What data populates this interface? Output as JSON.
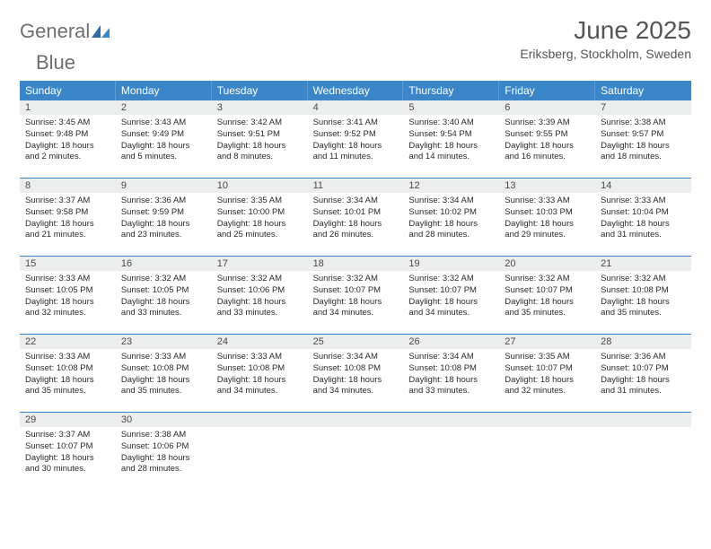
{
  "brand": {
    "part1": "General",
    "part2": "Blue"
  },
  "title": "June 2025",
  "location": "Eriksberg, Stockholm, Sweden",
  "colors": {
    "header_bg": "#3a86c8",
    "header_text": "#ffffff",
    "daynum_bg": "#eceded",
    "row_border": "#3a86c8",
    "text": "#2a2a2a",
    "title_text": "#555555"
  },
  "weekdays": [
    "Sunday",
    "Monday",
    "Tuesday",
    "Wednesday",
    "Thursday",
    "Friday",
    "Saturday"
  ],
  "weeks": [
    [
      {
        "n": "1",
        "sunrise": "Sunrise: 3:45 AM",
        "sunset": "Sunset: 9:48 PM",
        "daylight": "Daylight: 18 hours and 2 minutes."
      },
      {
        "n": "2",
        "sunrise": "Sunrise: 3:43 AM",
        "sunset": "Sunset: 9:49 PM",
        "daylight": "Daylight: 18 hours and 5 minutes."
      },
      {
        "n": "3",
        "sunrise": "Sunrise: 3:42 AM",
        "sunset": "Sunset: 9:51 PM",
        "daylight": "Daylight: 18 hours and 8 minutes."
      },
      {
        "n": "4",
        "sunrise": "Sunrise: 3:41 AM",
        "sunset": "Sunset: 9:52 PM",
        "daylight": "Daylight: 18 hours and 11 minutes."
      },
      {
        "n": "5",
        "sunrise": "Sunrise: 3:40 AM",
        "sunset": "Sunset: 9:54 PM",
        "daylight": "Daylight: 18 hours and 14 minutes."
      },
      {
        "n": "6",
        "sunrise": "Sunrise: 3:39 AM",
        "sunset": "Sunset: 9:55 PM",
        "daylight": "Daylight: 18 hours and 16 minutes."
      },
      {
        "n": "7",
        "sunrise": "Sunrise: 3:38 AM",
        "sunset": "Sunset: 9:57 PM",
        "daylight": "Daylight: 18 hours and 18 minutes."
      }
    ],
    [
      {
        "n": "8",
        "sunrise": "Sunrise: 3:37 AM",
        "sunset": "Sunset: 9:58 PM",
        "daylight": "Daylight: 18 hours and 21 minutes."
      },
      {
        "n": "9",
        "sunrise": "Sunrise: 3:36 AM",
        "sunset": "Sunset: 9:59 PM",
        "daylight": "Daylight: 18 hours and 23 minutes."
      },
      {
        "n": "10",
        "sunrise": "Sunrise: 3:35 AM",
        "sunset": "Sunset: 10:00 PM",
        "daylight": "Daylight: 18 hours and 25 minutes."
      },
      {
        "n": "11",
        "sunrise": "Sunrise: 3:34 AM",
        "sunset": "Sunset: 10:01 PM",
        "daylight": "Daylight: 18 hours and 26 minutes."
      },
      {
        "n": "12",
        "sunrise": "Sunrise: 3:34 AM",
        "sunset": "Sunset: 10:02 PM",
        "daylight": "Daylight: 18 hours and 28 minutes."
      },
      {
        "n": "13",
        "sunrise": "Sunrise: 3:33 AM",
        "sunset": "Sunset: 10:03 PM",
        "daylight": "Daylight: 18 hours and 29 minutes."
      },
      {
        "n": "14",
        "sunrise": "Sunrise: 3:33 AM",
        "sunset": "Sunset: 10:04 PM",
        "daylight": "Daylight: 18 hours and 31 minutes."
      }
    ],
    [
      {
        "n": "15",
        "sunrise": "Sunrise: 3:33 AM",
        "sunset": "Sunset: 10:05 PM",
        "daylight": "Daylight: 18 hours and 32 minutes."
      },
      {
        "n": "16",
        "sunrise": "Sunrise: 3:32 AM",
        "sunset": "Sunset: 10:05 PM",
        "daylight": "Daylight: 18 hours and 33 minutes."
      },
      {
        "n": "17",
        "sunrise": "Sunrise: 3:32 AM",
        "sunset": "Sunset: 10:06 PM",
        "daylight": "Daylight: 18 hours and 33 minutes."
      },
      {
        "n": "18",
        "sunrise": "Sunrise: 3:32 AM",
        "sunset": "Sunset: 10:07 PM",
        "daylight": "Daylight: 18 hours and 34 minutes."
      },
      {
        "n": "19",
        "sunrise": "Sunrise: 3:32 AM",
        "sunset": "Sunset: 10:07 PM",
        "daylight": "Daylight: 18 hours and 34 minutes."
      },
      {
        "n": "20",
        "sunrise": "Sunrise: 3:32 AM",
        "sunset": "Sunset: 10:07 PM",
        "daylight": "Daylight: 18 hours and 35 minutes."
      },
      {
        "n": "21",
        "sunrise": "Sunrise: 3:32 AM",
        "sunset": "Sunset: 10:08 PM",
        "daylight": "Daylight: 18 hours and 35 minutes."
      }
    ],
    [
      {
        "n": "22",
        "sunrise": "Sunrise: 3:33 AM",
        "sunset": "Sunset: 10:08 PM",
        "daylight": "Daylight: 18 hours and 35 minutes."
      },
      {
        "n": "23",
        "sunrise": "Sunrise: 3:33 AM",
        "sunset": "Sunset: 10:08 PM",
        "daylight": "Daylight: 18 hours and 35 minutes."
      },
      {
        "n": "24",
        "sunrise": "Sunrise: 3:33 AM",
        "sunset": "Sunset: 10:08 PM",
        "daylight": "Daylight: 18 hours and 34 minutes."
      },
      {
        "n": "25",
        "sunrise": "Sunrise: 3:34 AM",
        "sunset": "Sunset: 10:08 PM",
        "daylight": "Daylight: 18 hours and 34 minutes."
      },
      {
        "n": "26",
        "sunrise": "Sunrise: 3:34 AM",
        "sunset": "Sunset: 10:08 PM",
        "daylight": "Daylight: 18 hours and 33 minutes."
      },
      {
        "n": "27",
        "sunrise": "Sunrise: 3:35 AM",
        "sunset": "Sunset: 10:07 PM",
        "daylight": "Daylight: 18 hours and 32 minutes."
      },
      {
        "n": "28",
        "sunrise": "Sunrise: 3:36 AM",
        "sunset": "Sunset: 10:07 PM",
        "daylight": "Daylight: 18 hours and 31 minutes."
      }
    ],
    [
      {
        "n": "29",
        "sunrise": "Sunrise: 3:37 AM",
        "sunset": "Sunset: 10:07 PM",
        "daylight": "Daylight: 18 hours and 30 minutes."
      },
      {
        "n": "30",
        "sunrise": "Sunrise: 3:38 AM",
        "sunset": "Sunset: 10:06 PM",
        "daylight": "Daylight: 18 hours and 28 minutes."
      },
      {
        "n": "",
        "sunrise": "",
        "sunset": "",
        "daylight": ""
      },
      {
        "n": "",
        "sunrise": "",
        "sunset": "",
        "daylight": ""
      },
      {
        "n": "",
        "sunrise": "",
        "sunset": "",
        "daylight": ""
      },
      {
        "n": "",
        "sunrise": "",
        "sunset": "",
        "daylight": ""
      },
      {
        "n": "",
        "sunrise": "",
        "sunset": "",
        "daylight": ""
      }
    ]
  ]
}
